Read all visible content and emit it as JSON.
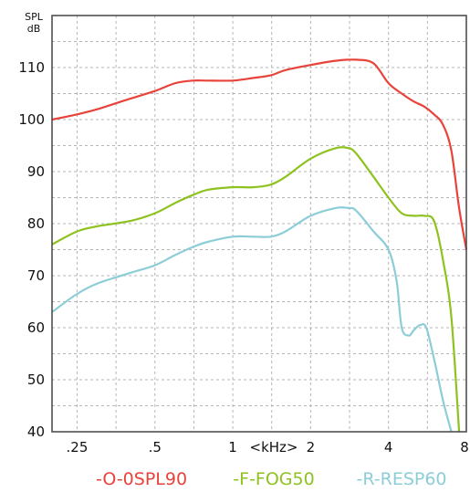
{
  "chart_data": {
    "type": "line",
    "ylabel_line1": "SPL",
    "ylabel_line2": "dB",
    "xlabel": "<kHz>",
    "x_scale": "log",
    "xlim": [
      0.2,
      8
    ],
    "ylim": [
      40,
      120
    ],
    "y_ticks": [
      40,
      50,
      60,
      70,
      80,
      90,
      100,
      110
    ],
    "x_ticks": [
      {
        "value": 0.25,
        "label": ".25"
      },
      {
        "value": 0.5,
        "label": ".5"
      },
      {
        "value": 1,
        "label": "1"
      },
      {
        "value": 2,
        "label": "2"
      },
      {
        "value": 4,
        "label": "4"
      },
      {
        "value": 8,
        "label": "8"
      }
    ],
    "grid": true,
    "legend_position": "bottom",
    "series": [
      {
        "name": "-O-0SPL90",
        "color": "#e8433b",
        "x": [
          0.2,
          0.25,
          0.3,
          0.4,
          0.5,
          0.6,
          0.7,
          0.8,
          1.0,
          1.2,
          1.4,
          1.6,
          2.0,
          2.5,
          3.0,
          3.5,
          4.0,
          4.5,
          5.0,
          5.5,
          6.0,
          6.5,
          7.0,
          7.5,
          8.0
        ],
        "y": [
          100,
          101,
          102,
          104,
          105.5,
          107,
          107.5,
          107.5,
          107.5,
          108,
          108.5,
          109.5,
          110.5,
          111.3,
          111.5,
          110.8,
          107,
          105,
          103.5,
          102.5,
          101,
          99,
          94,
          83,
          75
        ]
      },
      {
        "name": "-F-FOG50",
        "color": "#8dc21f",
        "x": [
          0.2,
          0.25,
          0.3,
          0.4,
          0.5,
          0.6,
          0.7,
          0.8,
          1.0,
          1.2,
          1.4,
          1.6,
          2.0,
          2.5,
          2.8,
          3.0,
          3.5,
          4.0,
          4.5,
          5.0,
          5.5,
          6.0,
          6.5,
          7.0,
          7.5
        ],
        "y": [
          76,
          78.5,
          79.5,
          80.5,
          82,
          84,
          85.5,
          86.5,
          87,
          87,
          87.5,
          89,
          92.5,
          94.5,
          94.5,
          93.5,
          89,
          85,
          82,
          81.5,
          81.5,
          80.5,
          73,
          62,
          40
        ]
      },
      {
        "name": "-R-RESP60",
        "color": "#8ccdd8",
        "x": [
          0.2,
          0.25,
          0.3,
          0.4,
          0.5,
          0.6,
          0.7,
          0.8,
          1.0,
          1.2,
          1.4,
          1.6,
          2.0,
          2.5,
          2.8,
          3.0,
          3.5,
          4.0,
          4.3,
          4.5,
          4.8,
          5.0,
          5.3,
          5.6,
          6.0,
          6.5,
          7.0
        ],
        "y": [
          63,
          66.5,
          68.5,
          70.5,
          72,
          74,
          75.5,
          76.5,
          77.5,
          77.5,
          77.5,
          78.5,
          81.5,
          83,
          83,
          82.5,
          78.5,
          75,
          69,
          60,
          58.5,
          59.5,
          60.5,
          60,
          54,
          46,
          40
        ]
      }
    ]
  }
}
